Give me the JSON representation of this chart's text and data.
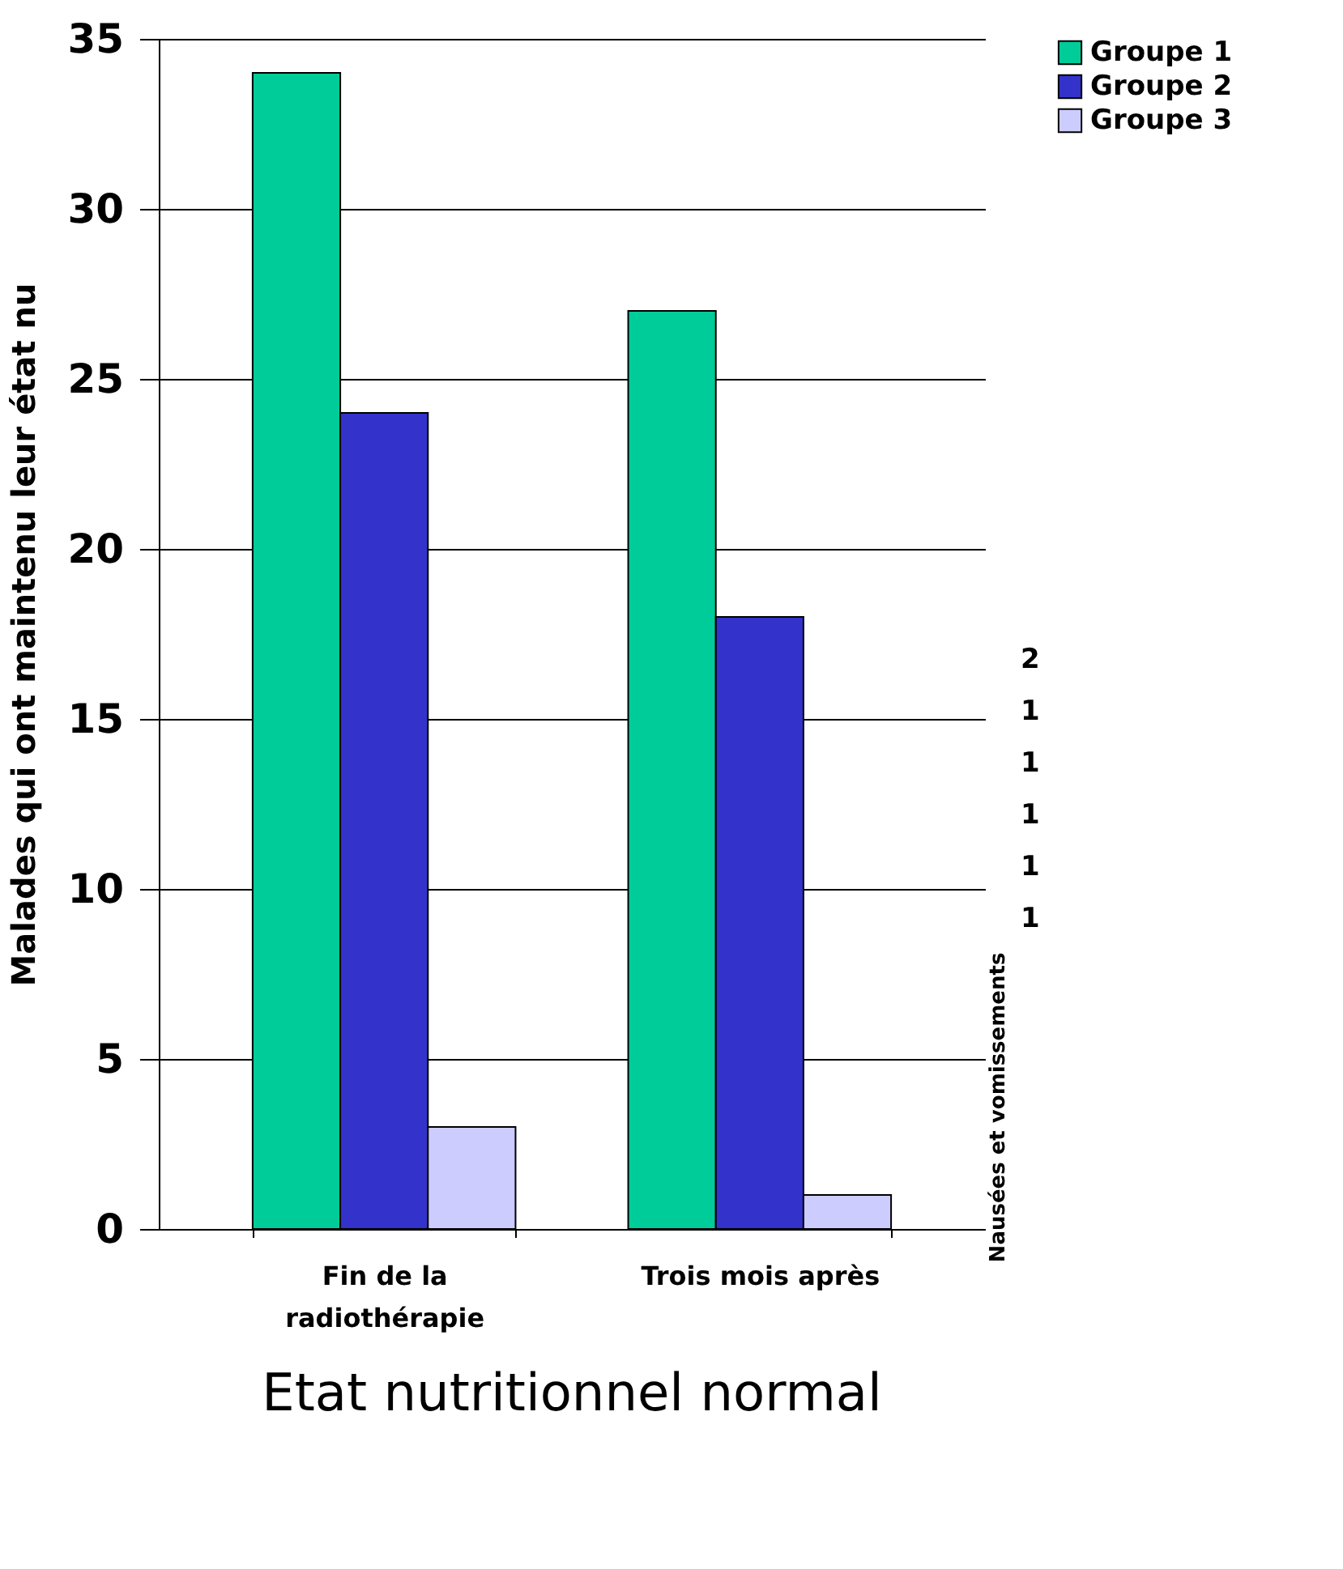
{
  "chart_data": [
    {
      "type": "bar",
      "title": "Etat nutritionnel normal",
      "ylabel": "Malades qui ont maintenu leur état nu",
      "categories": [
        "Fin de la\nradiothérapie",
        "Trois mois après"
      ],
      "series": [
        {
          "name": "Groupe 1",
          "color": "#00cc99",
          "values": [
            34,
            27
          ]
        },
        {
          "name": "Groupe 2",
          "color": "#3333cc",
          "values": [
            24,
            18
          ]
        },
        {
          "name": "Groupe 3",
          "color": "#ccccff",
          "values": [
            3,
            1
          ]
        }
      ],
      "ylim": [
        0,
        35
      ],
      "yticks": [
        0,
        5,
        10,
        15,
        20,
        25,
        30,
        35
      ],
      "grid": "y",
      "legend": "right"
    },
    {
      "type": "other",
      "ylabel": "Nausées et vomissements",
      "annotations": [
        "2",
        "1",
        "1",
        "1",
        "1",
        "1"
      ]
    }
  ]
}
